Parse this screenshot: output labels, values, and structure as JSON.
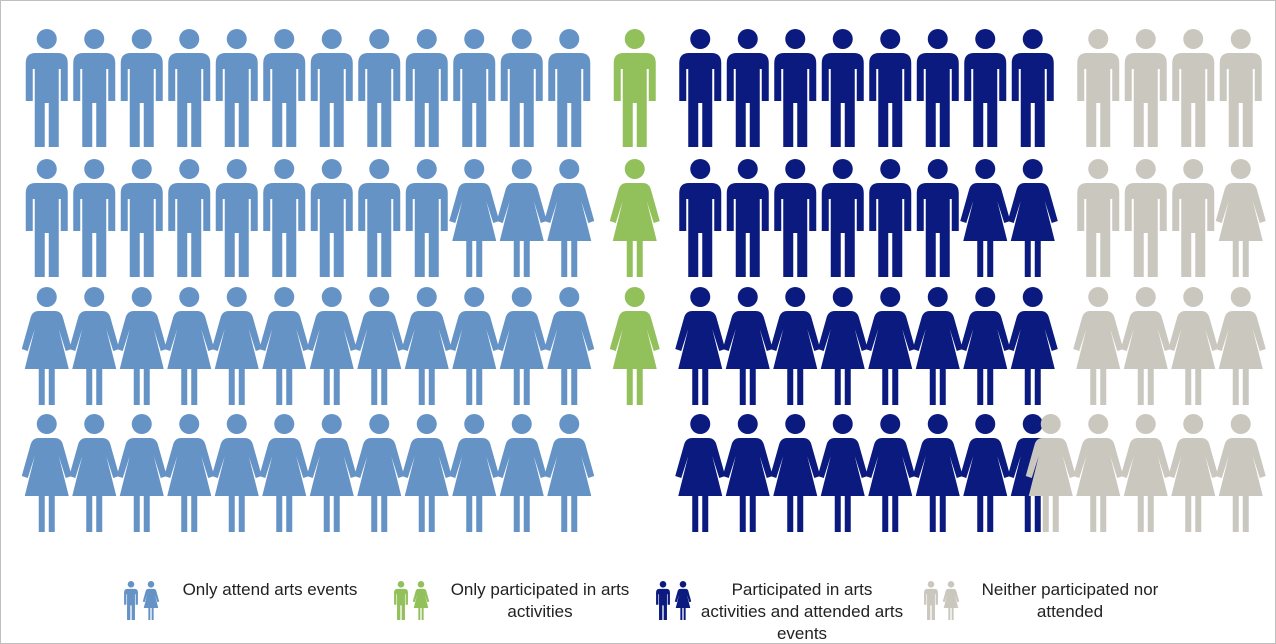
{
  "chart_data": {
    "type": "pictogram",
    "categories": [
      "Only attend arts events",
      "Only participated in arts activities",
      "Participated in arts activities and attended arts events",
      "Neither participated nor attended"
    ],
    "values": [
      48,
      3,
      32,
      17
    ],
    "colors": [
      "#6593c6",
      "#92c05b",
      "#0b1a7e",
      "#cac7bf"
    ],
    "legend": "bottom"
  }
}
